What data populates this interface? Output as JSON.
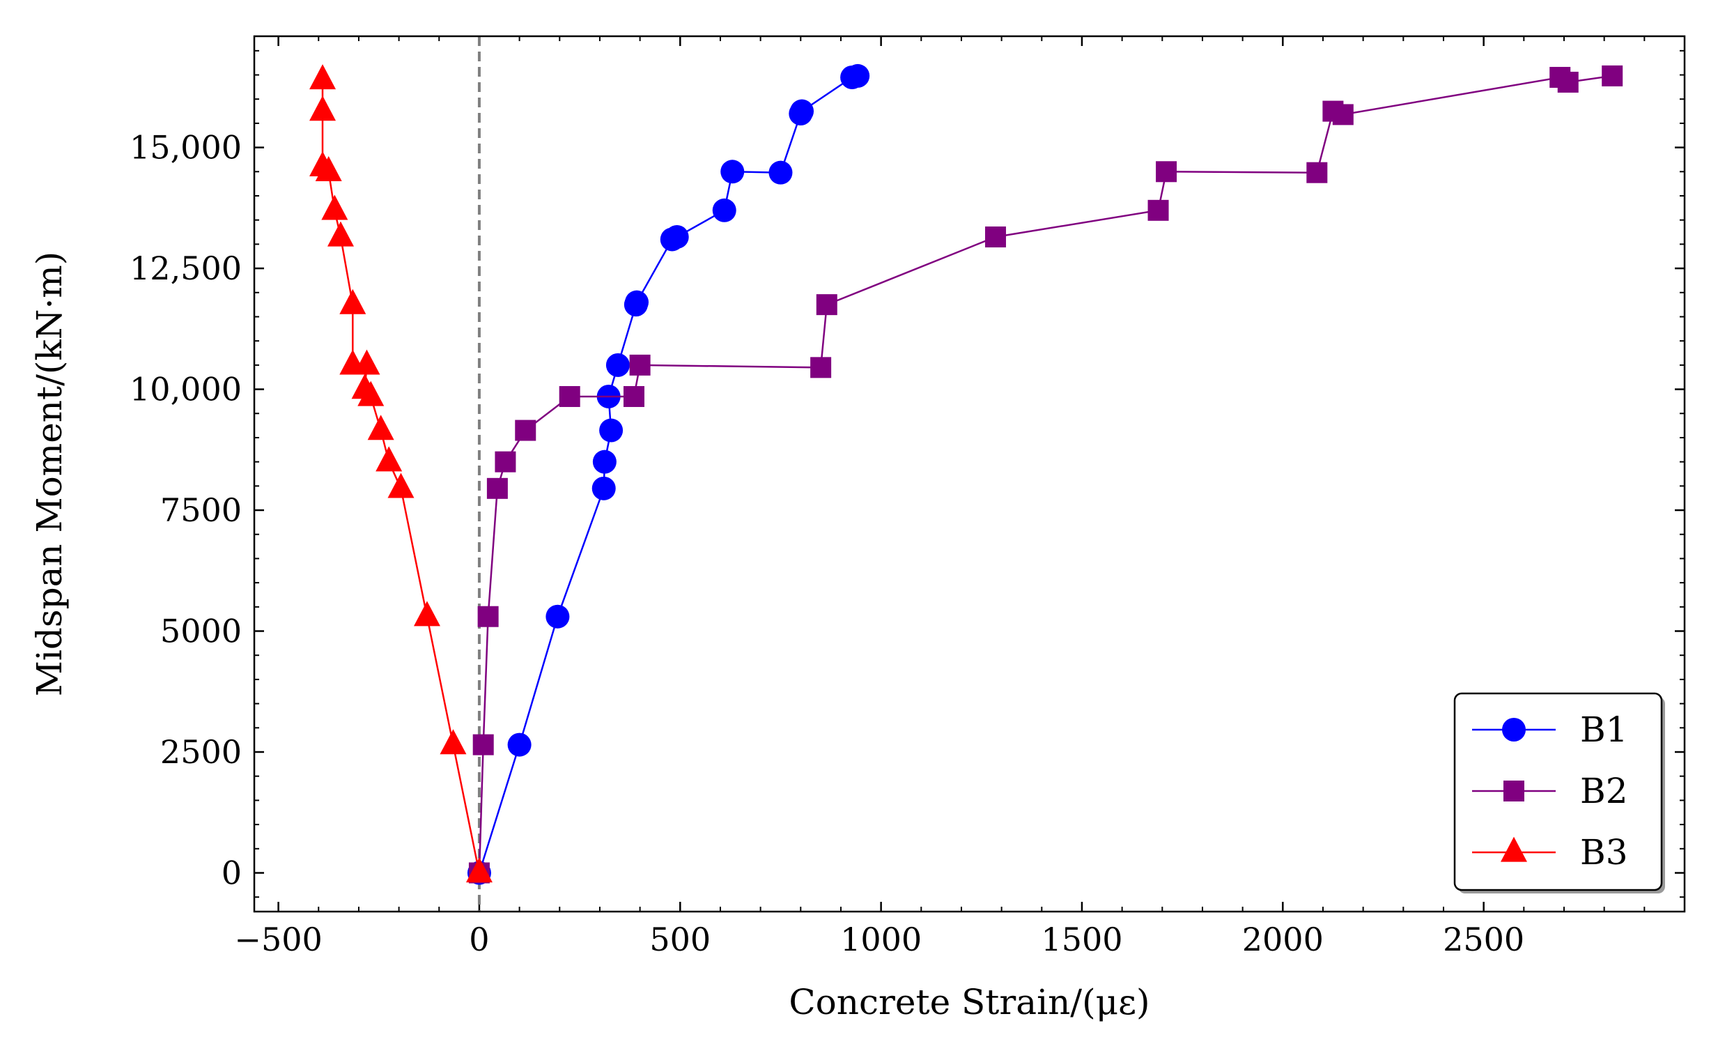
{
  "chart_data": {
    "type": "line",
    "xlabel": "Concrete Strain/(με)",
    "ylabel": "Midspan Moment/(kN·m)",
    "xlim": [
      -560,
      3000
    ],
    "ylim": [
      -800,
      17300
    ],
    "x_ticks": [
      -500,
      0,
      500,
      1000,
      1500,
      2000,
      2500
    ],
    "x_tick_labels": [
      "−500",
      "0",
      "500",
      "1000",
      "1500",
      "2000",
      "2500"
    ],
    "y_ticks": [
      0,
      2500,
      5000,
      7500,
      10000,
      12500,
      15000
    ],
    "y_tick_labels": [
      "0",
      "2500",
      "5000",
      "7500",
      "10,000",
      "12,500",
      "15,000"
    ],
    "grid": false,
    "reference_line": {
      "x": 0,
      "style": "dashed",
      "color": "#808080"
    },
    "legend_position": "lower-right",
    "series": [
      {
        "name": "B1",
        "color": "#0000ff",
        "marker": "circle",
        "points": [
          [
            0,
            0
          ],
          [
            100,
            2650
          ],
          [
            195,
            5300
          ],
          [
            310,
            7950
          ],
          [
            312,
            8500
          ],
          [
            328,
            9150
          ],
          [
            322,
            9850
          ],
          [
            345,
            10500
          ],
          [
            390,
            11750
          ],
          [
            392,
            11800
          ],
          [
            480,
            13100
          ],
          [
            492,
            13150
          ],
          [
            610,
            13700
          ],
          [
            630,
            14500
          ],
          [
            750,
            14480
          ],
          [
            800,
            15700
          ],
          [
            803,
            15750
          ],
          [
            928,
            16450
          ],
          [
            942,
            16480
          ]
        ]
      },
      {
        "name": "B2",
        "color": "#800080",
        "marker": "square",
        "points": [
          [
            0,
            0
          ],
          [
            10,
            2650
          ],
          [
            22,
            5300
          ],
          [
            45,
            7950
          ],
          [
            65,
            8500
          ],
          [
            115,
            9150
          ],
          [
            225,
            9850
          ],
          [
            385,
            9850
          ],
          [
            400,
            10500
          ],
          [
            850,
            10450
          ],
          [
            865,
            11750
          ],
          [
            1285,
            13150
          ],
          [
            1690,
            13700
          ],
          [
            1710,
            14500
          ],
          [
            2085,
            14480
          ],
          [
            2125,
            15750
          ],
          [
            2150,
            15680
          ],
          [
            2690,
            16450
          ],
          [
            2710,
            16350
          ],
          [
            2820,
            16480
          ]
        ]
      },
      {
        "name": "B3",
        "color": "#ff0000",
        "marker": "triangle",
        "points": [
          [
            0,
            0
          ],
          [
            -65,
            2650
          ],
          [
            -130,
            5300
          ],
          [
            -195,
            7950
          ],
          [
            -225,
            8500
          ],
          [
            -245,
            9150
          ],
          [
            -270,
            9850
          ],
          [
            -285,
            10000
          ],
          [
            -280,
            10500
          ],
          [
            -315,
            10500
          ],
          [
            -315,
            11750
          ],
          [
            -345,
            13150
          ],
          [
            -360,
            13700
          ],
          [
            -375,
            14500
          ],
          [
            -390,
            14600
          ],
          [
            -390,
            15750
          ],
          [
            -390,
            16400
          ]
        ]
      }
    ]
  }
}
